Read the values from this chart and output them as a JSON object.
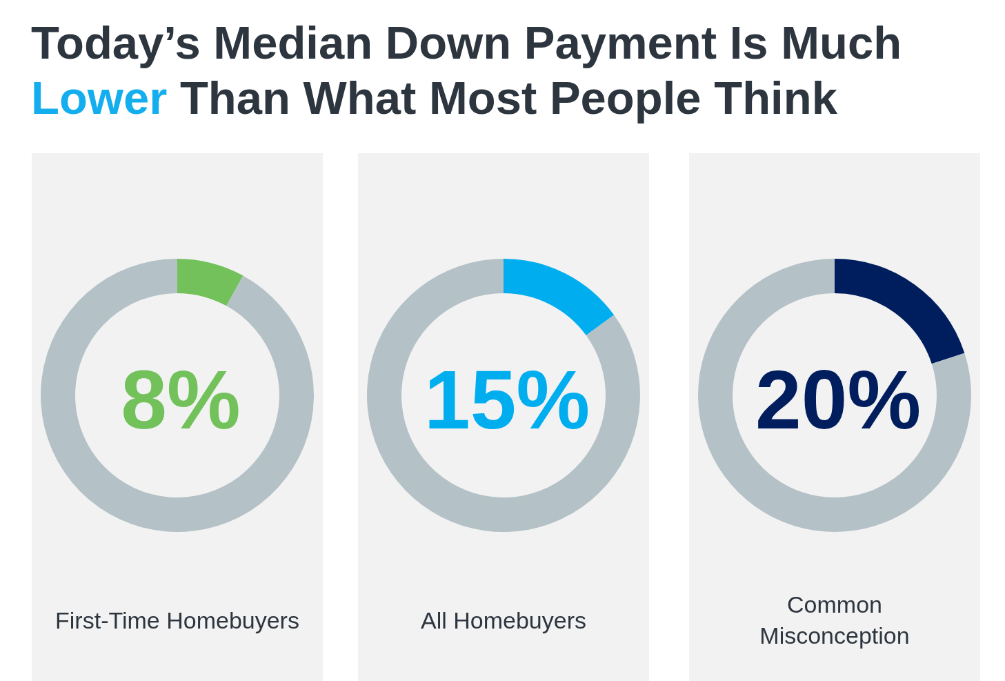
{
  "chart_data": [
    {
      "type": "donut",
      "title": "Today’s Median Down Payment Is Much Lower Than What Most People Think",
      "xlabel": "First-Time Homebuyers",
      "categories": [
        null,
        null
      ],
      "values": [
        8,
        92
      ],
      "colors": [
        "#72c15a",
        "#b4c1c7"
      ],
      "annotations": [
        "8%"
      ]
    },
    {
      "type": "donut",
      "xlabel": "All Homebuyers",
      "categories": [
        null,
        null
      ],
      "values": [
        15,
        85
      ],
      "colors": [
        "#00aeef",
        "#b4c1c7"
      ],
      "annotations": [
        "15%"
      ]
    },
    {
      "type": "donut",
      "xlabel": "Common\nMisconception",
      "categories": [
        null,
        null
      ],
      "values": [
        20,
        80
      ],
      "colors": [
        "#001e5e",
        "#b4c1c7"
      ],
      "annotations": [
        "20%"
      ]
    }
  ]
}
